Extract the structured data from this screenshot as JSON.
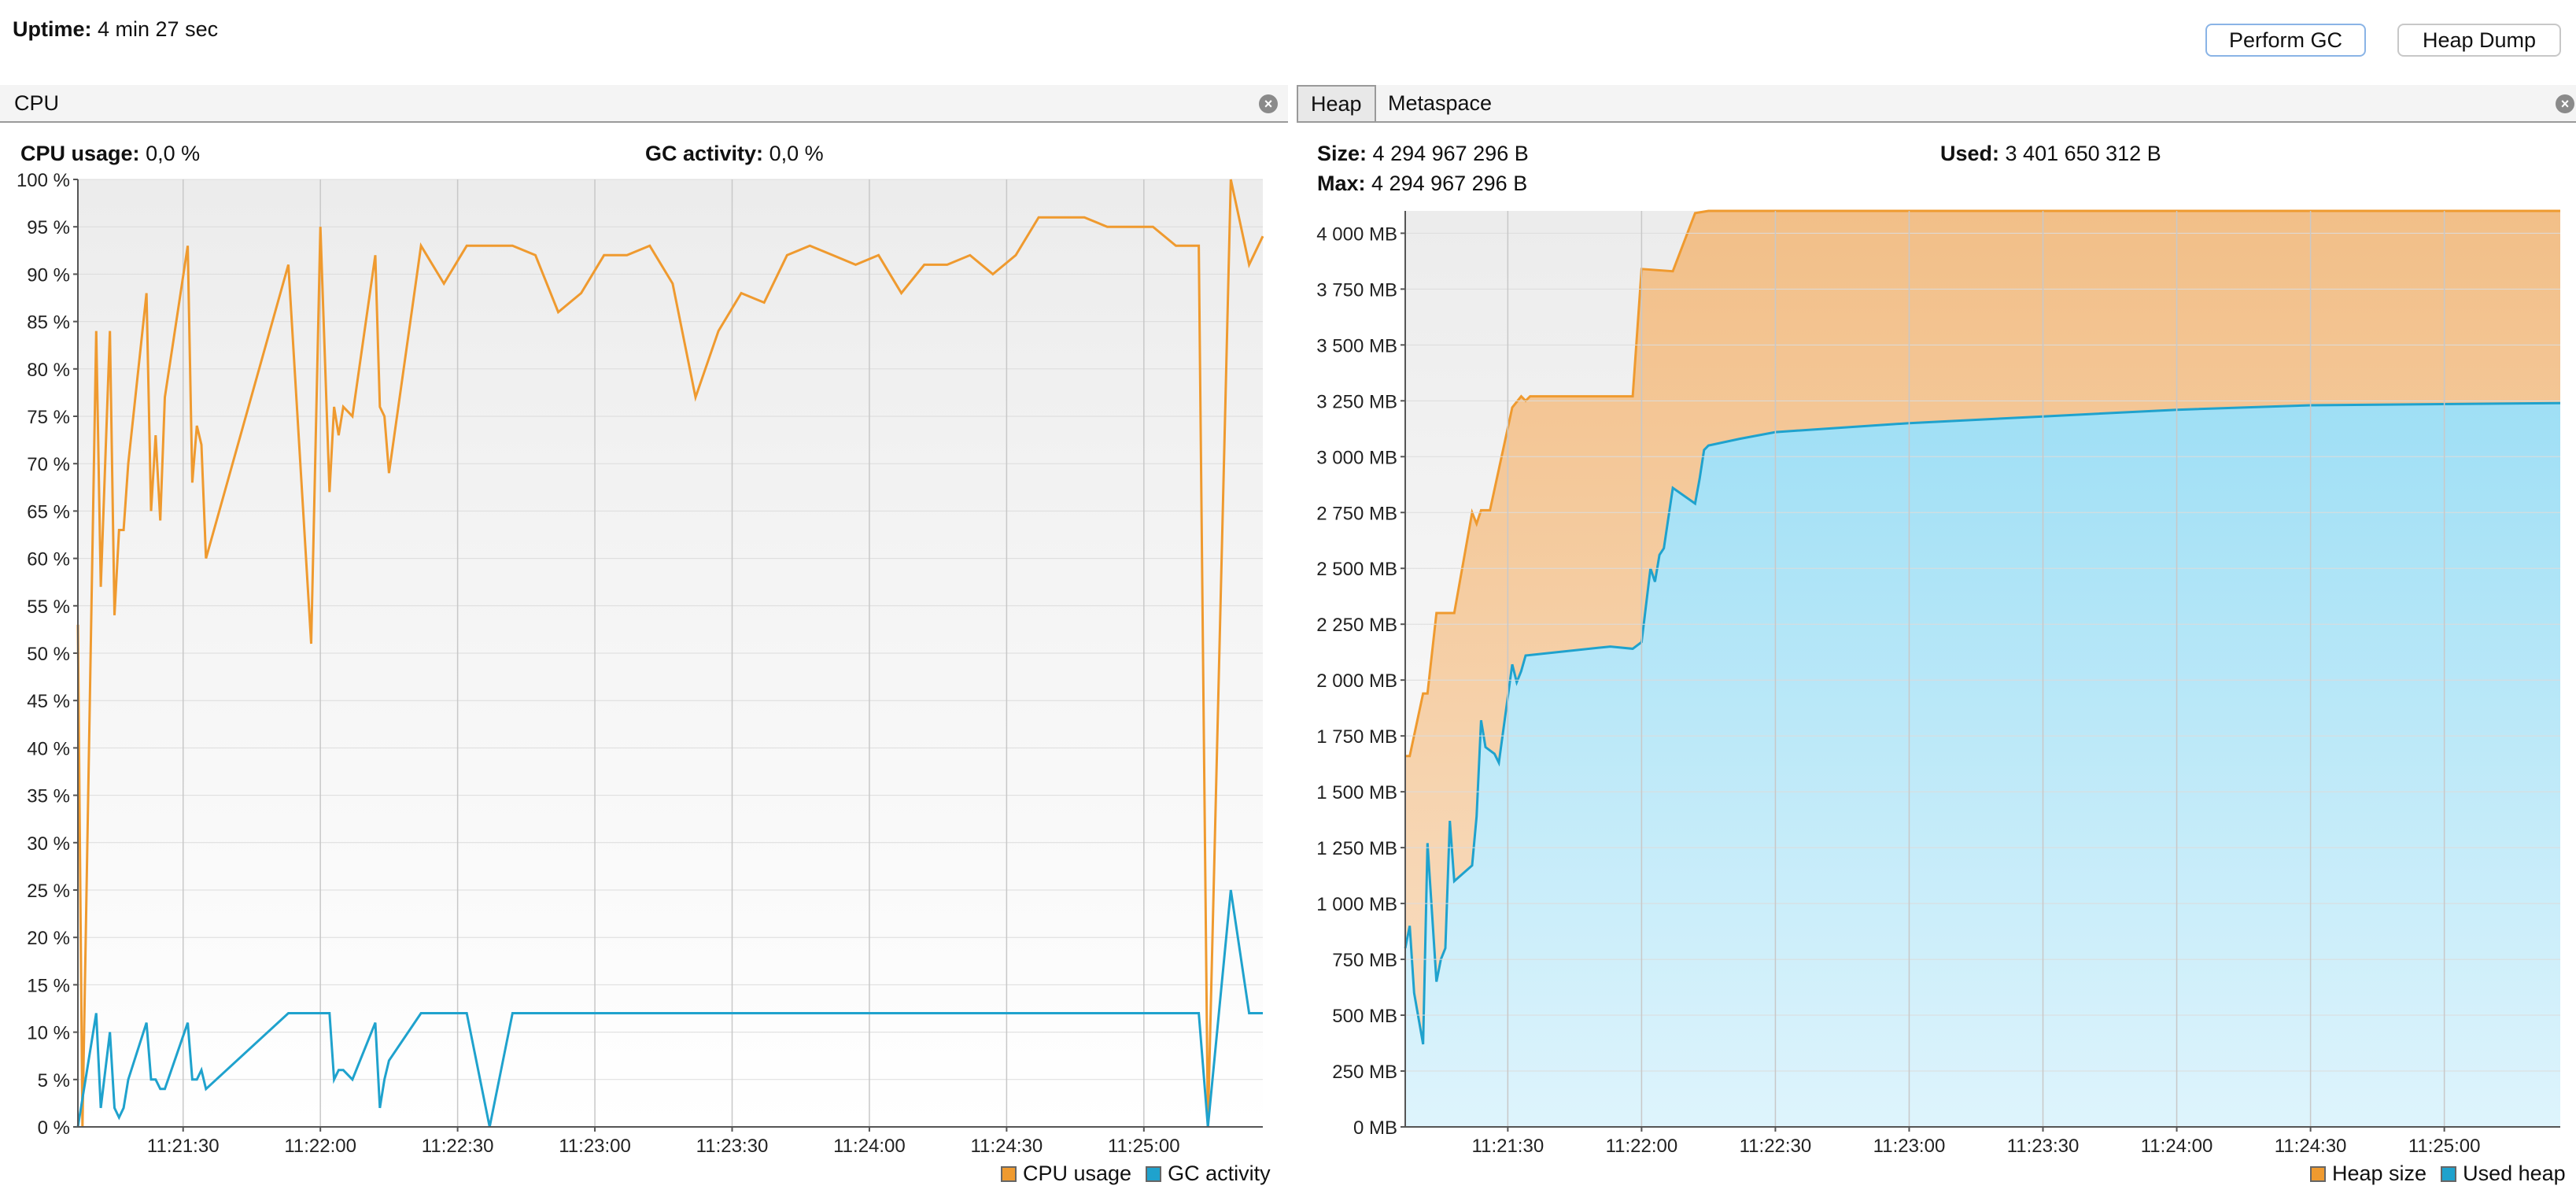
{
  "uptime": {
    "label": "Uptime:",
    "value": "4 min 27 sec"
  },
  "buttons": {
    "perform_gc": "Perform GC",
    "heap_dump": "Heap Dump"
  },
  "cpu_panel": {
    "tab": "CPU",
    "close_icon": "close-icon",
    "cpu_usage_label": "CPU usage:",
    "cpu_usage_value": "0,0 %",
    "gc_activity_label": "GC activity:",
    "gc_activity_value": "0,0 %",
    "legend": [
      "CPU usage",
      "GC activity"
    ]
  },
  "heap_panel": {
    "tabs": [
      "Heap",
      "Metaspace"
    ],
    "close_icon": "close-icon",
    "size_label": "Size:",
    "size_value": "4 294 967 296 B",
    "max_label": "Max:",
    "max_value": "4 294 967 296 B",
    "used_label": "Used:",
    "used_value": "3 401 650 312 B",
    "legend": [
      "Heap size",
      "Used heap"
    ]
  },
  "colors": {
    "orange": "#ef9a2f",
    "blue": "#1fa2cd",
    "orange_fill": "#f4c896",
    "blue_fill": "#b8e6f7"
  },
  "chart_data": [
    {
      "type": "line",
      "title": "CPU",
      "x_start": "11:21:07",
      "x_end": "11:25:26",
      "xticks": [
        "11:21:30",
        "11:22:00",
        "11:22:30",
        "11:23:00",
        "11:23:30",
        "11:24:00",
        "11:24:30",
        "11:25:00"
      ],
      "yticks": [
        "0 %",
        "5 %",
        "10 %",
        "15 %",
        "20 %",
        "25 %",
        "30 %",
        "35 %",
        "40 %",
        "45 %",
        "50 %",
        "55 %",
        "60 %",
        "65 %",
        "70 %",
        "75 %",
        "80 %",
        "85 %",
        "90 %",
        "95 %",
        "100 %"
      ],
      "ylim": [
        0,
        100
      ],
      "series": [
        {
          "name": "CPU usage",
          "points": [
            [
              "11:21:07",
              53
            ],
            [
              "11:21:08",
              0
            ],
            [
              "11:21:11",
              84
            ],
            [
              "11:21:12",
              57
            ],
            [
              "11:21:14",
              84
            ],
            [
              "11:21:15",
              54
            ],
            [
              "11:21:16",
              63
            ],
            [
              "11:21:17",
              63
            ],
            [
              "11:21:18",
              70
            ],
            [
              "11:21:22",
              88
            ],
            [
              "11:21:23",
              65
            ],
            [
              "11:21:24",
              73
            ],
            [
              "11:21:25",
              64
            ],
            [
              "11:21:26",
              77
            ],
            [
              "11:21:31",
              93
            ],
            [
              "11:21:32",
              68
            ],
            [
              "11:21:33",
              74
            ],
            [
              "11:21:34",
              72
            ],
            [
              "11:21:35",
              60
            ],
            [
              "11:21:53",
              91
            ],
            [
              "11:21:58",
              51
            ],
            [
              "11:22:00",
              95
            ],
            [
              "11:22:02",
              67
            ],
            [
              "11:22:03",
              76
            ],
            [
              "11:22:04",
              73
            ],
            [
              "11:22:05",
              76
            ],
            [
              "11:22:07",
              75
            ],
            [
              "11:22:12",
              92
            ],
            [
              "11:22:13",
              76
            ],
            [
              "11:22:14",
              75
            ],
            [
              "11:22:15",
              69
            ],
            [
              "11:22:22",
              93
            ],
            [
              "11:22:27",
              89
            ],
            [
              "11:22:32",
              93
            ],
            [
              "11:22:37",
              93
            ],
            [
              "11:22:42",
              93
            ],
            [
              "11:22:47",
              92
            ],
            [
              "11:22:52",
              86
            ],
            [
              "11:22:57",
              88
            ],
            [
              "11:23:02",
              92
            ],
            [
              "11:23:07",
              92
            ],
            [
              "11:23:12",
              93
            ],
            [
              "11:23:17",
              89
            ],
            [
              "11:23:22",
              77
            ],
            [
              "11:23:27",
              84
            ],
            [
              "11:23:32",
              88
            ],
            [
              "11:23:37",
              87
            ],
            [
              "11:23:42",
              92
            ],
            [
              "11:23:47",
              93
            ],
            [
              "11:23:52",
              92
            ],
            [
              "11:23:57",
              91
            ],
            [
              "11:24:02",
              92
            ],
            [
              "11:24:07",
              88
            ],
            [
              "11:24:12",
              91
            ],
            [
              "11:24:17",
              91
            ],
            [
              "11:24:22",
              92
            ],
            [
              "11:24:27",
              90
            ],
            [
              "11:24:32",
              92
            ],
            [
              "11:24:37",
              96
            ],
            [
              "11:24:42",
              96
            ],
            [
              "11:24:47",
              96
            ],
            [
              "11:24:52",
              95
            ],
            [
              "11:24:57",
              95
            ],
            [
              "11:25:02",
              95
            ],
            [
              "11:25:07",
              93
            ],
            [
              "11:25:12",
              93
            ],
            [
              "11:25:14",
              0
            ],
            [
              "11:25:19",
              100
            ],
            [
              "11:25:23",
              91
            ],
            [
              "11:25:26",
              94
            ]
          ]
        },
        {
          "name": "GC activity",
          "points": [
            [
              "11:21:07",
              0
            ],
            [
              "11:21:11",
              12
            ],
            [
              "11:21:12",
              2
            ],
            [
              "11:21:14",
              10
            ],
            [
              "11:21:15",
              2
            ],
            [
              "11:21:16",
              1
            ],
            [
              "11:21:17",
              2
            ],
            [
              "11:21:18",
              5
            ],
            [
              "11:21:22",
              11
            ],
            [
              "11:21:23",
              5
            ],
            [
              "11:21:24",
              5
            ],
            [
              "11:21:25",
              4
            ],
            [
              "11:21:26",
              4
            ],
            [
              "11:21:31",
              11
            ],
            [
              "11:21:32",
              5
            ],
            [
              "11:21:33",
              5
            ],
            [
              "11:21:34",
              6
            ],
            [
              "11:21:35",
              4
            ],
            [
              "11:21:53",
              12
            ],
            [
              "11:21:58",
              12
            ],
            [
              "11:22:02",
              12
            ],
            [
              "11:22:03",
              5
            ],
            [
              "11:22:04",
              6
            ],
            [
              "11:22:05",
              6
            ],
            [
              "11:22:07",
              5
            ],
            [
              "11:22:12",
              11
            ],
            [
              "11:22:13",
              2
            ],
            [
              "11:22:14",
              5
            ],
            [
              "11:22:15",
              7
            ],
            [
              "11:22:22",
              12
            ],
            [
              "11:22:27",
              12
            ],
            [
              "11:22:32",
              12
            ],
            [
              "11:22:37",
              0
            ],
            [
              "11:22:42",
              12
            ],
            [
              "11:22:47",
              12
            ],
            [
              "11:22:52",
              12
            ],
            [
              "11:22:57",
              12
            ],
            [
              "11:23:02",
              12
            ],
            [
              "11:23:07",
              12
            ],
            [
              "11:23:12",
              12
            ],
            [
              "11:23:17",
              12
            ],
            [
              "11:23:22",
              12
            ],
            [
              "11:23:27",
              12
            ],
            [
              "11:23:32",
              12
            ],
            [
              "11:23:37",
              12
            ],
            [
              "11:23:42",
              12
            ],
            [
              "11:23:47",
              12
            ],
            [
              "11:23:52",
              12
            ],
            [
              "11:23:57",
              12
            ],
            [
              "11:24:02",
              12
            ],
            [
              "11:24:07",
              12
            ],
            [
              "11:24:12",
              12
            ],
            [
              "11:24:17",
              12
            ],
            [
              "11:24:22",
              12
            ],
            [
              "11:24:27",
              12
            ],
            [
              "11:24:32",
              12
            ],
            [
              "11:24:37",
              12
            ],
            [
              "11:24:42",
              12
            ],
            [
              "11:24:47",
              12
            ],
            [
              "11:24:52",
              12
            ],
            [
              "11:24:57",
              12
            ],
            [
              "11:25:02",
              12
            ],
            [
              "11:25:07",
              12
            ],
            [
              "11:25:12",
              12
            ],
            [
              "11:25:14",
              0
            ],
            [
              "11:25:19",
              25
            ],
            [
              "11:25:23",
              12
            ],
            [
              "11:25:26",
              12
            ]
          ]
        }
      ]
    },
    {
      "type": "area",
      "title": "Heap",
      "x_start": "11:21:07",
      "x_end": "11:25:26",
      "xticks": [
        "11:21:30",
        "11:22:00",
        "11:22:30",
        "11:23:00",
        "11:23:30",
        "11:24:00",
        "11:24:30",
        "11:25:00"
      ],
      "yticks": [
        "0 MB",
        "250 MB",
        "500 MB",
        "750 MB",
        "1 000 MB",
        "1 250 MB",
        "1 500 MB",
        "1 750 MB",
        "2 000 MB",
        "2 250 MB",
        "2 500 MB",
        "2 750 MB",
        "3 000 MB",
        "3 250 MB",
        "3 500 MB",
        "3 750 MB",
        "4 000 MB"
      ],
      "ylim": [
        0,
        4100
      ],
      "series": [
        {
          "name": "Heap size",
          "points": [
            [
              "11:21:07",
              1660
            ],
            [
              "11:21:08",
              1660
            ],
            [
              "11:21:11",
              1940
            ],
            [
              "11:21:12",
              1940
            ],
            [
              "11:21:14",
              2300
            ],
            [
              "11:21:18",
              2300
            ],
            [
              "11:21:22",
              2750
            ],
            [
              "11:21:23",
              2700
            ],
            [
              "11:21:24",
              2760
            ],
            [
              "11:21:26",
              2760
            ],
            [
              "11:21:31",
              3220
            ],
            [
              "11:21:33",
              3270
            ],
            [
              "11:21:34",
              3250
            ],
            [
              "11:21:35",
              3270
            ],
            [
              "11:21:53",
              3270
            ],
            [
              "11:21:58",
              3270
            ],
            [
              "11:22:00",
              3840
            ],
            [
              "11:22:07",
              3830
            ],
            [
              "11:22:12",
              4090
            ],
            [
              "11:22:15",
              4100
            ],
            [
              "11:25:26",
              4100
            ]
          ]
        },
        {
          "name": "Used heap",
          "points": [
            [
              "11:21:07",
              800
            ],
            [
              "11:21:08",
              900
            ],
            [
              "11:21:09",
              600
            ],
            [
              "11:21:11",
              370
            ],
            [
              "11:21:12",
              1270
            ],
            [
              "11:21:14",
              650
            ],
            [
              "11:21:15",
              750
            ],
            [
              "11:21:16",
              800
            ],
            [
              "11:21:17",
              1370
            ],
            [
              "11:21:18",
              1100
            ],
            [
              "11:21:22",
              1170
            ],
            [
              "11:21:23",
              1390
            ],
            [
              "11:21:24",
              1820
            ],
            [
              "11:21:25",
              1700
            ],
            [
              "11:21:27",
              1670
            ],
            [
              "11:21:28",
              1630
            ],
            [
              "11:21:31",
              2070
            ],
            [
              "11:21:32",
              1990
            ],
            [
              "11:21:33",
              2040
            ],
            [
              "11:21:34",
              2110
            ],
            [
              "11:21:53",
              2150
            ],
            [
              "11:21:58",
              2140
            ],
            [
              "11:22:00",
              2170
            ],
            [
              "11:22:02",
              2500
            ],
            [
              "11:22:03",
              2440
            ],
            [
              "11:22:04",
              2560
            ],
            [
              "11:22:05",
              2590
            ],
            [
              "11:22:07",
              2860
            ],
            [
              "11:22:12",
              2790
            ],
            [
              "11:22:13",
              2900
            ],
            [
              "11:22:14",
              3030
            ],
            [
              "11:22:15",
              3050
            ],
            [
              "11:22:22",
              3080
            ],
            [
              "11:22:30",
              3110
            ],
            [
              "11:23:00",
              3150
            ],
            [
              "11:23:30",
              3180
            ],
            [
              "11:24:00",
              3210
            ],
            [
              "11:24:30",
              3230
            ],
            [
              "11:25:26",
              3240
            ]
          ]
        }
      ]
    }
  ]
}
